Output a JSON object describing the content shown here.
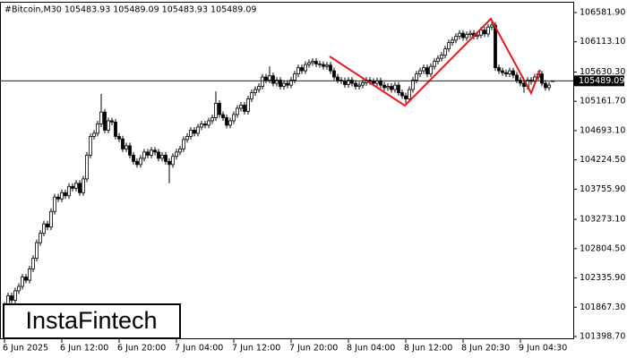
{
  "chart_data": {
    "type": "candlestick",
    "title": "#Bitcoin,M30  105483.93 105489.09 105483.93 105489.09",
    "logo": "InstaFintech",
    "categories": [
      "6 Jun 2025",
      null,
      null,
      null,
      null,
      null,
      null,
      null,
      null,
      null,
      null,
      null,
      null,
      null,
      null,
      null,
      "6 Jun 12:00",
      null,
      null,
      null,
      null,
      null,
      null,
      null,
      null,
      null,
      null,
      null,
      null,
      null,
      null,
      null,
      "6 Jun 20:00",
      null,
      null,
      null,
      null,
      null,
      null,
      null,
      null,
      null,
      null,
      null,
      null,
      null,
      null,
      null,
      "7 Jun 04:00",
      null,
      null,
      null,
      null,
      null,
      null,
      null,
      null,
      null,
      null,
      null,
      null,
      null,
      null,
      null,
      "7 Jun 12:00",
      null,
      null,
      null,
      null,
      null,
      null,
      null,
      null,
      null,
      null,
      null,
      null,
      null,
      null,
      null,
      "7 Jun 20:00",
      null,
      null,
      null,
      null,
      null,
      null,
      null,
      null,
      null,
      null,
      null,
      null,
      null,
      null,
      null,
      "8 Jun 04:00",
      null,
      null,
      null,
      null,
      null,
      null,
      null,
      null,
      null,
      null,
      null,
      null,
      null,
      null,
      null,
      "8 Jun 12:00",
      null,
      null,
      null,
      null,
      null,
      null,
      null,
      null,
      null,
      null,
      null,
      null,
      null,
      null,
      null,
      "8 Jun 20:30",
      null,
      null,
      null,
      null,
      null,
      null,
      null,
      null,
      null,
      null,
      null,
      null,
      null,
      null,
      null,
      "9 Jun 04:30",
      null,
      null,
      null,
      null,
      null,
      null,
      null,
      null,
      null
    ],
    "open": [
      101850,
      101900,
      102050,
      101980,
      102130,
      102200,
      102350,
      102300,
      102480,
      102650,
      102900,
      103050,
      103200,
      103150,
      103400,
      103630,
      103600,
      103700,
      103650,
      103800,
      103770,
      103850,
      103700,
      103920,
      104300,
      104600,
      104650,
      104800,
      104990,
      104700,
      104850,
      104830,
      104600,
      104560,
      104400,
      104450,
      104300,
      104200,
      104150,
      104250,
      104350,
      104300,
      104380,
      104350,
      104250,
      104300,
      104200,
      104150,
      104280,
      104350,
      104400,
      104550,
      104600,
      104700,
      104650,
      104750,
      104800,
      104780,
      104850,
      104900,
      105130,
      104950,
      104900,
      104780,
      104850,
      104950,
      105050,
      105100,
      105000,
      105200,
      105300,
      105350,
      105400,
      105550,
      105500,
      105570,
      105450,
      105500,
      105400,
      105450,
      105420,
      105500,
      105600,
      105700,
      105650,
      105750,
      105780,
      105800,
      105760,
      105750,
      105720,
      105740,
      105650,
      105550,
      105500,
      105490,
      105430,
      105500,
      105450,
      105400,
      105420,
      105460,
      105500,
      105480,
      105450,
      105490,
      105420,
      105380,
      105400,
      105350,
      105420,
      105300,
      105250,
      105200,
      105350,
      105500,
      105600,
      105650,
      105700,
      105600,
      105720,
      105800,
      105850,
      105900,
      106000,
      106100,
      106140,
      106200,
      106250,
      106180,
      106230,
      106250,
      106200,
      106220,
      106300,
      106240,
      106350,
      106380,
      105700,
      105650,
      105620,
      105600,
      105650,
      105580,
      105500,
      105450,
      105400,
      105500,
      105480,
      105550,
      105600,
      105450,
      105380,
      105483.93
    ],
    "high": [
      101950,
      102100,
      102100,
      102180,
      102250,
      102400,
      102400,
      102530,
      102700,
      102950,
      103100,
      103250,
      103250,
      103450,
      103680,
      103680,
      103750,
      103750,
      103850,
      103850,
      103900,
      103900,
      103970,
      104350,
      104650,
      104700,
      104850,
      105280,
      105040,
      104900,
      104900,
      104880,
      104650,
      104610,
      104500,
      104500,
      104350,
      104250,
      104300,
      104400,
      104400,
      104430,
      104430,
      104400,
      104350,
      104350,
      104250,
      104330,
      104400,
      104450,
      104600,
      104650,
      104750,
      104750,
      104800,
      104850,
      104850,
      104900,
      104950,
      105320,
      105180,
      105000,
      104950,
      104900,
      105000,
      105100,
      105150,
      105150,
      105250,
      105350,
      105400,
      105450,
      105600,
      105600,
      105720,
      105620,
      105550,
      105550,
      105500,
      105500,
      105550,
      105650,
      105750,
      105750,
      105800,
      105830,
      105850,
      105850,
      105810,
      105800,
      105790,
      105790,
      105700,
      105600,
      105550,
      105540,
      105550,
      105550,
      105500,
      105470,
      105510,
      105550,
      105550,
      105530,
      105540,
      105540,
      105470,
      105450,
      105450,
      105470,
      105470,
      105350,
      105300,
      105400,
      105550,
      105650,
      105700,
      105750,
      105750,
      105770,
      105850,
      105900,
      105950,
      106050,
      106150,
      106190,
      106250,
      106300,
      106300,
      106280,
      106300,
      106300,
      106270,
      106350,
      106350,
      106400,
      106480,
      106430,
      105750,
      105700,
      105670,
      105700,
      105700,
      105630,
      105550,
      105500,
      105550,
      105550,
      105600,
      105650,
      105650,
      105500,
      105470,
      105489.09
    ],
    "low": [
      101800,
      101850,
      101930,
      101930,
      102080,
      102150,
      102250,
      102250,
      102430,
      102600,
      102850,
      103000,
      103100,
      103100,
      103350,
      103550,
      103550,
      103600,
      103600,
      103720,
      103720,
      103650,
      103650,
      103870,
      104250,
      104550,
      104600,
      104750,
      104650,
      104650,
      104780,
      104550,
      104510,
      104350,
      104350,
      104250,
      104150,
      104100,
      104100,
      104200,
      104250,
      104250,
      104300,
      104200,
      104200,
      104150,
      103850,
      104100,
      104230,
      104300,
      104350,
      104500,
      104550,
      104600,
      104600,
      104700,
      104730,
      104730,
      104800,
      104850,
      104900,
      104850,
      104730,
      104730,
      104800,
      104900,
      105000,
      104950,
      104950,
      105150,
      105250,
      105300,
      105350,
      105450,
      105450,
      105400,
      105400,
      105350,
      105350,
      105370,
      105370,
      105450,
      105550,
      105600,
      105600,
      105700,
      105730,
      105710,
      105700,
      105670,
      105670,
      105600,
      105500,
      105450,
      105440,
      105380,
      105380,
      105400,
      105350,
      105350,
      105370,
      105410,
      105430,
      105400,
      105400,
      105370,
      105330,
      105330,
      105300,
      105300,
      105250,
      105200,
      105130,
      105150,
      105300,
      105450,
      105550,
      105600,
      105550,
      105550,
      105670,
      105750,
      105800,
      105850,
      105950,
      106050,
      106090,
      106150,
      106130,
      106130,
      106180,
      106150,
      106150,
      106170,
      106190,
      106190,
      106300,
      105650,
      105600,
      105570,
      105550,
      105550,
      105530,
      105450,
      105400,
      105300,
      105350,
      105430,
      105430,
      105500,
      105400,
      105330,
      105330,
      105483.93
    ],
    "close": [
      101900,
      102050,
      101980,
      102130,
      102200,
      102350,
      102300,
      102480,
      102650,
      102900,
      103050,
      103200,
      103150,
      103400,
      103630,
      103600,
      103700,
      103650,
      103800,
      103770,
      103850,
      103700,
      103920,
      104300,
      104600,
      104650,
      104800,
      104990,
      104700,
      104850,
      104830,
      104600,
      104560,
      104400,
      104450,
      104300,
      104200,
      104150,
      104250,
      104350,
      104300,
      104380,
      104350,
      104250,
      104300,
      104200,
      104150,
      104280,
      104350,
      104400,
      104550,
      104600,
      104700,
      104650,
      104750,
      104800,
      104780,
      104850,
      104900,
      105130,
      104950,
      104900,
      104780,
      104850,
      104950,
      105050,
      105100,
      105000,
      105200,
      105300,
      105350,
      105400,
      105550,
      105500,
      105570,
      105450,
      105500,
      105400,
      105450,
      105420,
      105500,
      105600,
      105700,
      105650,
      105750,
      105780,
      105800,
      105760,
      105750,
      105720,
      105740,
      105650,
      105550,
      105500,
      105490,
      105430,
      105500,
      105450,
      105400,
      105420,
      105460,
      105500,
      105480,
      105450,
      105490,
      105420,
      105380,
      105400,
      105350,
      105420,
      105300,
      105250,
      105200,
      105350,
      105500,
      105600,
      105650,
      105700,
      105600,
      105720,
      105800,
      105850,
      105900,
      106000,
      106100,
      106140,
      106200,
      106250,
      106180,
      106230,
      106250,
      106200,
      106220,
      106300,
      106240,
      106350,
      106380,
      105700,
      105650,
      105620,
      105600,
      105650,
      105580,
      105500,
      105450,
      105400,
      105500,
      105480,
      105550,
      105600,
      105450,
      105380,
      105420,
      105489.09
    ],
    "ylim": [
      101398.7,
      106581.9
    ],
    "yticks": [
      {
        "value": 106581.9,
        "label": "106581.90"
      },
      {
        "value": 106113.1,
        "label": "106113.10"
      },
      {
        "value": 105630.3,
        "label": "105630.30"
      },
      {
        "value": 105161.7,
        "label": "105161.70"
      },
      {
        "value": 104693.1,
        "label": "104693.10"
      },
      {
        "value": 104224.5,
        "label": "104224.50"
      },
      {
        "value": 103755.9,
        "label": "103755.90"
      },
      {
        "value": 103273.1,
        "label": "103273.10"
      },
      {
        "value": 102804.5,
        "label": "102804.50"
      },
      {
        "value": 102335.9,
        "label": "102335.90"
      },
      {
        "value": 101867.3,
        "label": "101867.30"
      },
      {
        "value": 101398.7,
        "label": "101398.70"
      }
    ],
    "current_price": {
      "value": 105489.09,
      "label": "105489.09"
    }
  }
}
